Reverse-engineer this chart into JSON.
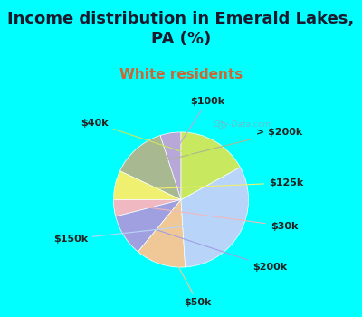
{
  "title": "Income distribution in Emerald Lakes,\nPA (%)",
  "subtitle": "White residents",
  "bg_color": "#00ffff",
  "chart_bg_top": "#e8f5e8",
  "chart_bg_bottom": "#f0f8f0",
  "labels": [
    "$100k",
    "> $200k",
    "$125k",
    "$30k",
    "$200k",
    "$50k",
    "$150k",
    "$40k"
  ],
  "values": [
    5,
    13,
    7,
    4,
    10,
    12,
    32,
    17
  ],
  "colors": [
    "#b8a8d8",
    "#a8b890",
    "#f0f070",
    "#f0b8c0",
    "#a0a0e0",
    "#f0c898",
    "#b8d4f8",
    "#c8e860"
  ],
  "startangle": 90,
  "title_fontsize": 13,
  "subtitle_fontsize": 11,
  "label_fontsize": 8,
  "watermark": "City-Data.com"
}
